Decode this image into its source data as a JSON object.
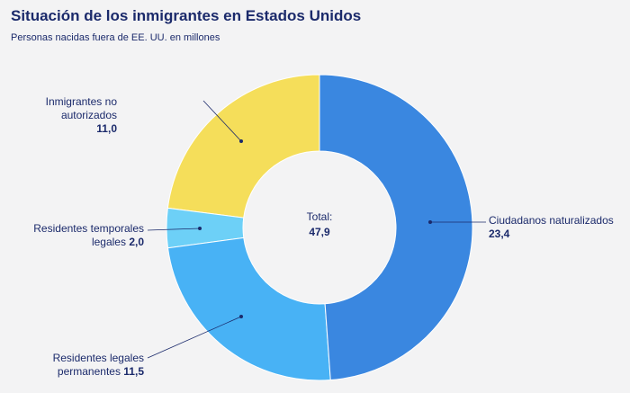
{
  "chart_data": {
    "type": "donut",
    "title": "Situación de los inmigrantes en Estados Unidos",
    "subtitle": "Personas nacidas fuera de EE. UU. en millones",
    "categories": [
      "Ciudadanos naturalizados",
      "Residentes legales permanentes",
      "Residentes temporales legales",
      "Inmigrantes no autorizados"
    ],
    "values": [
      23.4,
      11.5,
      2.0,
      11.0
    ],
    "value_labels": [
      "23,4",
      "11,5",
      "2,0",
      "11,0"
    ],
    "colors": [
      "#3a87e0",
      "#48b2f5",
      "#6dd0f7",
      "#f5de5a"
    ],
    "center_label": "Total:",
    "total": {
      "value": 47.9,
      "label": "47,9"
    }
  }
}
